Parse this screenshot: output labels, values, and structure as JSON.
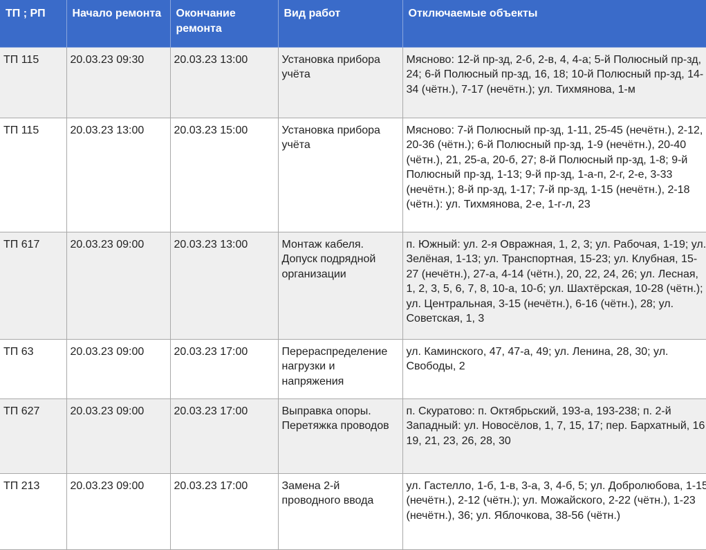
{
  "headers": [
    "ТП ; РП",
    "Начало ремонта",
    "Окончание ремонта",
    "Вид работ",
    "Отключаемые объекты"
  ],
  "rows": [
    {
      "tp": "ТП 115",
      "start": "20.03.23 09:30",
      "end": "20.03.23 13:00",
      "work": "Установка прибора учёта",
      "objects": "Мясново: 12-й пр-зд, 2-б, 2-в, 4, 4-а; 5-й Полюсный пр-зд, 24; 6-й Полюсный пр-зд, 16, 18; 10-й Полюсный пр-зд, 14-34 (чётн.), 7-17 (нечётн.); ул. Тихмянова, 1-м"
    },
    {
      "tp": "ТП 115",
      "start": "20.03.23 13:00",
      "end": "20.03.23 15:00",
      "work": "Установка прибора учёта",
      "objects": "Мясново: 7-й Полюсный пр-зд, 1-11, 25-45 (нечётн.), 2-12, 20-36 (чётн.); 6-й Полюсный пр-зд, 1-9 (нечётн.), 20-40 (чётн.), 21, 25-а, 20-б, 27; 8-й Полюсный пр-зд, 1-8; 9-й Полюсный пр-зд, 1-13; 9-й пр-зд, 1-а-п, 2-г, 2-е, 3-33 (нечётн.); 8-й пр-зд, 1-17; 7-й пр-зд, 1-15 (нечётн.), 2-18 (чётн.): ул. Тихмянова, 2-е, 1-г-л, 23"
    },
    {
      "tp": "ТП 617",
      "start": "20.03.23 09:00",
      "end": "20.03.23 13:00",
      "work": "Монтаж кабеля. Допуск подрядной организации",
      "objects": "п. Южный: ул. 2-я Овражная, 1, 2, 3; ул. Рабочая, 1-19; ул. Зелёная, 1-13; ул. Транспортная, 15-23; ул. Клубная, 15-27 (нечётн.), 27-а, 4-14 (чётн.), 20, 22, 24, 26; ул. Лесная, 1, 2, 3, 5, 6, 7, 8, 10-а, 10-б; ул. Шахтёрская, 10-28 (чётн.); ул. Центральная, 3-15 (нечётн.), 6-16 (чётн.), 28; ул. Советская, 1, 3"
    },
    {
      "tp": "ТП 63",
      "start": "20.03.23 09:00",
      "end": "20.03.23 17:00",
      "work": "Перераспределение нагрузки и напряжения",
      "objects": "ул. Каминского, 47, 47-а, 49; ул. Ленина, 28, 30; ул. Свободы, 2"
    },
    {
      "tp": "ТП 627",
      "start": "20.03.23 09:00",
      "end": "20.03.23 17:00",
      "work": "Выправка опоры. Перетяжка проводов",
      "objects": "п. Скуратово: п. Октябрьский, 193-а, 193-238; п. 2-й Западный: ул. Новосёлов, 1, 7, 15, 17; пер. Бархатный, 16, 19, 21, 23, 26, 28, 30"
    },
    {
      "tp": "ТП 213",
      "start": "20.03.23 09:00",
      "end": "20.03.23 17:00",
      "work": "Замена 2-й проводного ввода",
      "objects": "ул. Гастелло, 1-б, 1-в, 3-а, 3, 4-б, 5; ул. Добролюбова, 1-15 (нечётн.), 2-12 (чётн.); ул. Можайского, 2-22 (чётн.), 1-23 (нечётн.), 36; ул. Яблочкова, 38-56 (чётн.)"
    }
  ]
}
